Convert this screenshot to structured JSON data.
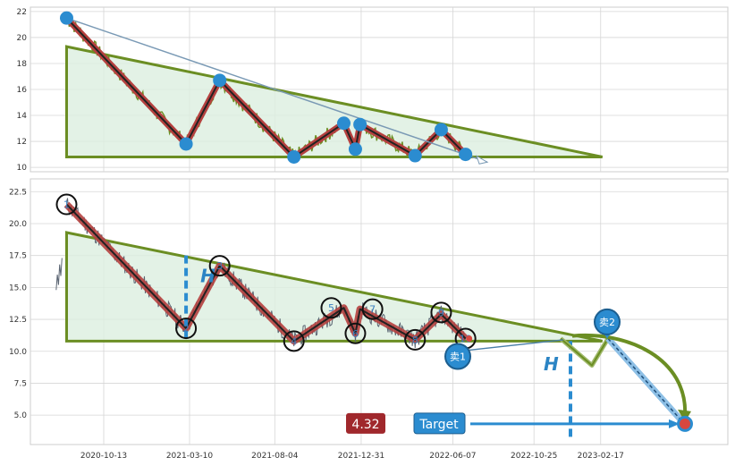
{
  "chart_data": {
    "type": "line",
    "colors": {
      "price": "#5a6472",
      "overview_price": "#6b8e23",
      "triangle": "#6b8e23",
      "triangle_fill": "#dcefe0",
      "wave": "#b5413f",
      "marker": "#2b8cd0",
      "grid": "#d6d6d6",
      "target_box": "#2b8cd0",
      "price_box": "#a0282c"
    },
    "x_tick_labels": [
      "2020-10-13",
      "2021-03-10",
      "2021-08-04",
      "2021-12-31",
      "2022-06-07",
      "2022-10-25",
      "2023-02-17"
    ],
    "x_tick_days": [
      0,
      148,
      295,
      444,
      602,
      742,
      857
    ],
    "overview_panel": {
      "y_ticks": [
        10,
        12,
        14,
        16,
        18,
        20,
        22
      ],
      "ylim": [
        9.8,
        22.2
      ],
      "wave_points": [
        {
          "x": -64,
          "y": 21.5
        },
        {
          "x": 142,
          "y": 11.8
        },
        {
          "x": 200,
          "y": 16.7
        },
        {
          "x": 328,
          "y": 10.8
        },
        {
          "x": 414,
          "y": 13.4
        },
        {
          "x": 434,
          "y": 11.4
        },
        {
          "x": 442,
          "y": 13.3
        },
        {
          "x": 537,
          "y": 10.9
        },
        {
          "x": 582,
          "y": 12.9
        },
        {
          "x": 624,
          "y": 11.0
        }
      ]
    },
    "main_panel": {
      "y_ticks": [
        5.0,
        7.5,
        10.0,
        12.5,
        15.0,
        17.5,
        20.0,
        22.5
      ],
      "ylim": [
        2.7,
        23.5
      ],
      "wave_labels": [
        "1",
        "2",
        "3",
        "4",
        "5",
        "6",
        "7",
        "8",
        "9",
        "10"
      ],
      "wave_points": [
        {
          "x": -64,
          "y": 21.5
        },
        {
          "x": 142,
          "y": 11.8
        },
        {
          "x": 200,
          "y": 16.7
        },
        {
          "x": 328,
          "y": 10.8
        },
        {
          "x": 414,
          "y": 13.4
        },
        {
          "x": 434,
          "y": 11.4
        },
        {
          "x": 442,
          "y": 13.3
        },
        {
          "x": 537,
          "y": 10.9
        },
        {
          "x": 582,
          "y": 12.9
        },
        {
          "x": 624,
          "y": 11.0
        }
      ],
      "triangle": {
        "x_start": -64,
        "y_top": 19.3,
        "y_base": 10.8,
        "x_apex": 860,
        "y_apex": 10.8
      },
      "h_marker": "H",
      "sell_labels": [
        "卖1",
        "卖2"
      ],
      "target_label": "Target",
      "price_label": "4.32",
      "target_price": 4.32
    }
  }
}
